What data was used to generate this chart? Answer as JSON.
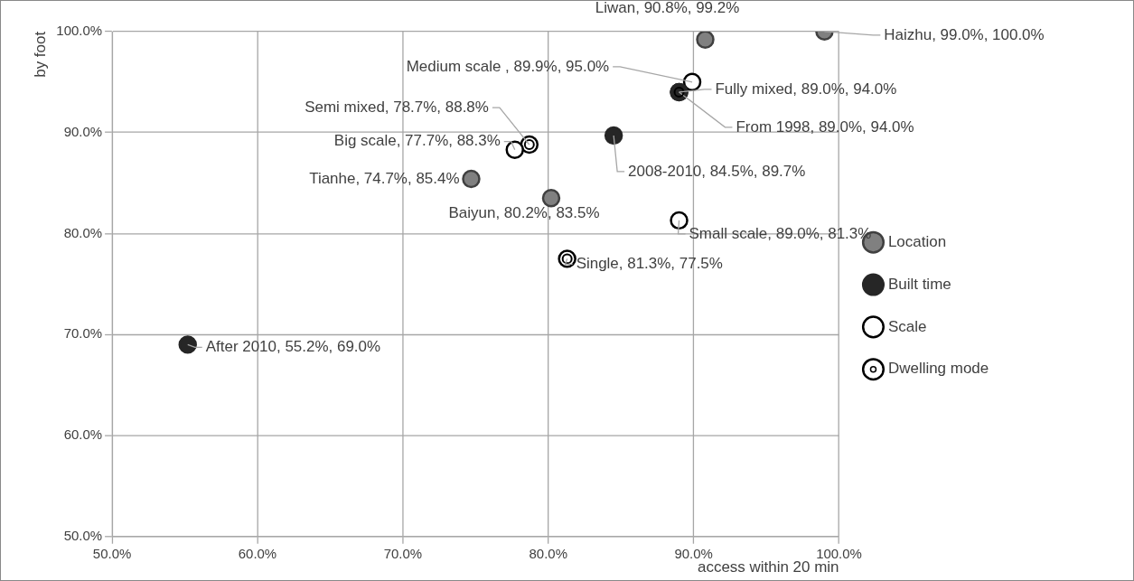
{
  "chart_data": {
    "type": "scatter",
    "xlabel": "access within 20 min",
    "ylabel": "by foot",
    "xlim": [
      50,
      100
    ],
    "ylim": [
      50,
      100
    ],
    "xticks": [
      {
        "value": 50,
        "label": "50.0%"
      },
      {
        "value": 60,
        "label": "60.0%"
      },
      {
        "value": 70,
        "label": "70.0%"
      },
      {
        "value": 80,
        "label": "80.0%"
      },
      {
        "value": 90,
        "label": "90.0%"
      },
      {
        "value": 100,
        "label": "100.0%"
      }
    ],
    "yticks": [
      {
        "value": 50,
        "label": "50.0%"
      },
      {
        "value": 60,
        "label": "60.0%"
      },
      {
        "value": 70,
        "label": "70.0%"
      },
      {
        "value": 80,
        "label": "80.0%"
      },
      {
        "value": 90,
        "label": "90.0%"
      },
      {
        "value": 100,
        "label": "100.0%"
      }
    ],
    "grid": true,
    "legend": "right",
    "marker": "circle",
    "series": [
      {
        "name": "Location",
        "color": "#808080",
        "x": [
          90.8,
          99.0,
          74.7,
          80.2
        ],
        "values": [
          99.2,
          100.0,
          85.4,
          83.5
        ],
        "value_labels": [
          "Liwan, 90.8%, 99.2%",
          "Haizhu, 99.0%, 100.0%",
          "Tianhe, 74.7%, 85.4%",
          "Baiyun, 80.2%, 83.5%"
        ]
      },
      {
        "name": "Built time",
        "color": "#262626",
        "x": [
          89.0,
          84.5,
          55.2
        ],
        "values": [
          94.0,
          89.7,
          69.0
        ],
        "value_labels": [
          "From 1998, 89.0%, 94.0%",
          "2008-2010, 84.5%, 89.7%",
          "After 2010, 55.2%, 69.0%"
        ]
      },
      {
        "name": "Scale",
        "color": "#ffffff",
        "x": [
          89.9,
          77.7,
          89.0
        ],
        "values": [
          95.0,
          88.3,
          81.3
        ],
        "value_labels": [
          "Medium scale , 89.9%, 95.0%",
          "Big scale, 77.7%, 88.3%",
          "Small scale, 89.0%, 81.3%"
        ]
      },
      {
        "name": "Dwelling mode",
        "color": "#ffffff",
        "x": [
          89.0,
          78.7,
          81.3
        ],
        "values": [
          94.0,
          88.8,
          77.5
        ],
        "value_labels": [
          "Fully mixed, 89.0%, 94.0%",
          "Semi mixed, 78.7%, 88.8%",
          "Single, 81.3%, 77.5%"
        ]
      }
    ]
  }
}
